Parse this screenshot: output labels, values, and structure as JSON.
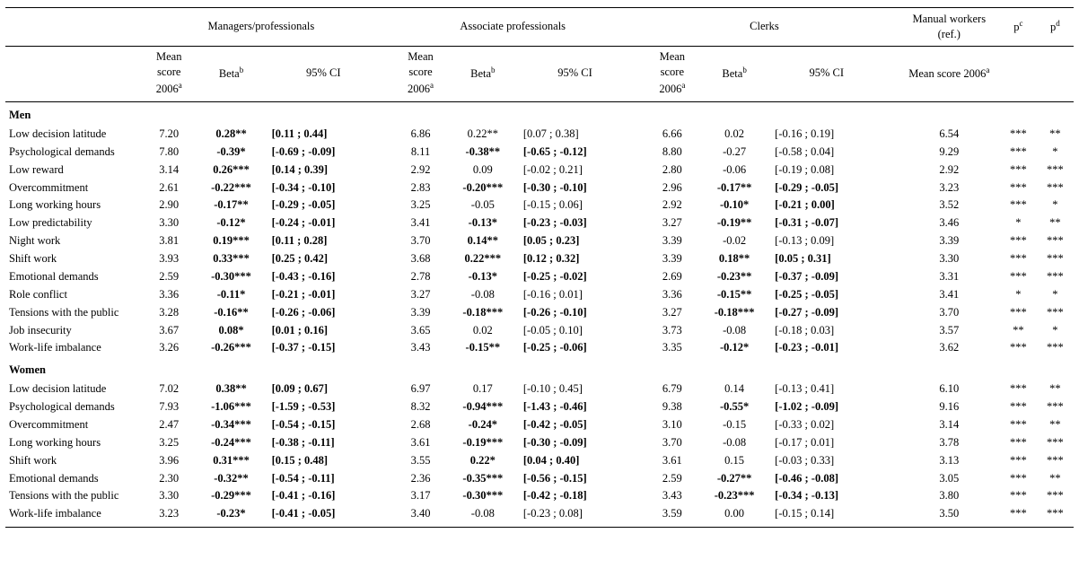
{
  "headers": {
    "groups": [
      "Managers/professionals",
      "Associate professionals",
      "Clerks"
    ],
    "manual": "Manual workers (ref.)",
    "mean": "Mean score 2006",
    "mean_sup": "a",
    "beta": "Beta",
    "beta_sup": "b",
    "ci": "95% CI",
    "manual_mean": "Mean score 2006",
    "manual_sup": "a",
    "pc": "p",
    "pc_sup": "c",
    "pd": "p",
    "pd_sup": "d"
  },
  "sections": [
    {
      "title": "Men",
      "rows": [
        {
          "label": "Low decision latitude",
          "g": [
            {
              "mean": "7.20",
              "beta": "0.28**",
              "ci": "[0.11 ; 0.44]",
              "bb": true,
              "cb": true
            },
            {
              "mean": "6.86",
              "beta": "0.22**",
              "ci": "[0.07 ; 0.38]",
              "bb": false,
              "cb": false
            },
            {
              "mean": "6.66",
              "beta": "0.02",
              "ci": "[-0.16 ; 0.19]",
              "bb": false,
              "cb": false
            }
          ],
          "manual": "6.54",
          "pc": "***",
          "pd": "**"
        },
        {
          "label": "Psychological demands",
          "g": [
            {
              "mean": "7.80",
              "beta": "-0.39*",
              "ci": "[-0.69 ; -0.09]",
              "bb": true,
              "cb": true
            },
            {
              "mean": "8.11",
              "beta": "-0.38**",
              "ci": "[-0.65 ; -0.12]",
              "bb": true,
              "cb": true
            },
            {
              "mean": "8.80",
              "beta": "-0.27",
              "ci": "[-0.58 ; 0.04]",
              "bb": false,
              "cb": false
            }
          ],
          "manual": "9.29",
          "pc": "***",
          "pd": "*"
        },
        {
          "label": "Low reward",
          "g": [
            {
              "mean": "3.14",
              "beta": "0.26***",
              "ci": "[0.14 ; 0.39]",
              "bb": true,
              "cb": true
            },
            {
              "mean": "2.92",
              "beta": "0.09",
              "ci": "[-0.02 ; 0.21]",
              "bb": false,
              "cb": false
            },
            {
              "mean": "2.80",
              "beta": "-0.06",
              "ci": "[-0.19 ; 0.08]",
              "bb": false,
              "cb": false
            }
          ],
          "manual": "2.92",
          "pc": "***",
          "pd": "***"
        },
        {
          "label": "Overcommitment",
          "g": [
            {
              "mean": "2.61",
              "beta": "-0.22***",
              "ci": "[-0.34 ; -0.10]",
              "bb": true,
              "cb": true
            },
            {
              "mean": "2.83",
              "beta": "-0.20***",
              "ci": "[-0.30 ; -0.10]",
              "bb": true,
              "cb": true
            },
            {
              "mean": "2.96",
              "beta": "-0.17**",
              "ci": "[-0.29 ; -0.05]",
              "bb": true,
              "cb": true
            }
          ],
          "manual": "3.23",
          "pc": "***",
          "pd": "***"
        },
        {
          "label": "Long working hours",
          "g": [
            {
              "mean": "2.90",
              "beta": "-0.17**",
              "ci": "[-0.29 ; -0.05]",
              "bb": true,
              "cb": true
            },
            {
              "mean": "3.25",
              "beta": "-0.05",
              "ci": "[-0.15 ; 0.06]",
              "bb": false,
              "cb": false
            },
            {
              "mean": "2.92",
              "beta": "-0.10*",
              "ci": "[-0.21 ; 0.00]",
              "bb": true,
              "cb": true
            }
          ],
          "manual": "3.52",
          "pc": "***",
          "pd": "*"
        },
        {
          "label": "Low predictability",
          "g": [
            {
              "mean": "3.30",
              "beta": "-0.12*",
              "ci": "[-0.24 ; -0.01]",
              "bb": true,
              "cb": true
            },
            {
              "mean": "3.41",
              "beta": "-0.13*",
              "ci": "[-0.23 ; -0.03]",
              "bb": true,
              "cb": true
            },
            {
              "mean": "3.27",
              "beta": "-0.19**",
              "ci": "[-0.31 ; -0.07]",
              "bb": true,
              "cb": true
            }
          ],
          "manual": "3.46",
          "pc": "*",
          "pd": "**"
        },
        {
          "label": "Night work",
          "g": [
            {
              "mean": "3.81",
              "beta": "0.19***",
              "ci": "[0.11 ; 0.28]",
              "bb": true,
              "cb": true
            },
            {
              "mean": "3.70",
              "beta": "0.14**",
              "ci": "[0.05 ; 0.23]",
              "bb": true,
              "cb": true
            },
            {
              "mean": "3.39",
              "beta": "-0.02",
              "ci": "[-0.13 ; 0.09]",
              "bb": false,
              "cb": false
            }
          ],
          "manual": "3.39",
          "pc": "***",
          "pd": "***"
        },
        {
          "label": "Shift work",
          "g": [
            {
              "mean": "3.93",
              "beta": "0.33***",
              "ci": "[0.25 ; 0.42]",
              "bb": true,
              "cb": true
            },
            {
              "mean": "3.68",
              "beta": "0.22***",
              "ci": "[0.12 ; 0.32]",
              "bb": true,
              "cb": true
            },
            {
              "mean": "3.39",
              "beta": "0.18**",
              "ci": "[0.05 ; 0.31]",
              "bb": true,
              "cb": true
            }
          ],
          "manual": "3.30",
          "pc": "***",
          "pd": "***"
        },
        {
          "label": "Emotional demands",
          "g": [
            {
              "mean": "2.59",
              "beta": "-0.30***",
              "ci": "[-0.43 ; -0.16]",
              "bb": true,
              "cb": true
            },
            {
              "mean": "2.78",
              "beta": "-0.13*",
              "ci": "[-0.25 ; -0.02]",
              "bb": true,
              "cb": true
            },
            {
              "mean": "2.69",
              "beta": "-0.23**",
              "ci": "[-0.37 ; -0.09]",
              "bb": true,
              "cb": true
            }
          ],
          "manual": "3.31",
          "pc": "***",
          "pd": "***"
        },
        {
          "label": "Role conflict",
          "g": [
            {
              "mean": "3.36",
              "beta": "-0.11*",
              "ci": "[-0.21 ; -0.01]",
              "bb": true,
              "cb": true
            },
            {
              "mean": "3.27",
              "beta": "-0.08",
              "ci": "[-0.16 ; 0.01]",
              "bb": false,
              "cb": false
            },
            {
              "mean": "3.36",
              "beta": "-0.15**",
              "ci": "[-0.25 ; -0.05]",
              "bb": true,
              "cb": true
            }
          ],
          "manual": "3.41",
          "pc": "*",
          "pd": "*"
        },
        {
          "label": "Tensions with the public",
          "g": [
            {
              "mean": "3.28",
              "beta": "-0.16**",
              "ci": "[-0.26 ; -0.06]",
              "bb": true,
              "cb": true
            },
            {
              "mean": "3.39",
              "beta": "-0.18***",
              "ci": "[-0.26 ; -0.10]",
              "bb": true,
              "cb": true
            },
            {
              "mean": "3.27",
              "beta": "-0.18***",
              "ci": "[-0.27 ; -0.09]",
              "bb": true,
              "cb": true
            }
          ],
          "manual": "3.70",
          "pc": "***",
          "pd": "***"
        },
        {
          "label": "Job insecurity",
          "g": [
            {
              "mean": "3.67",
              "beta": "0.08*",
              "ci": "[0.01 ; 0.16]",
              "bb": true,
              "cb": true
            },
            {
              "mean": "3.65",
              "beta": "0.02",
              "ci": "[-0.05 ; 0.10]",
              "bb": false,
              "cb": false
            },
            {
              "mean": "3.73",
              "beta": "-0.08",
              "ci": "[-0.18 ; 0.03]",
              "bb": false,
              "cb": false
            }
          ],
          "manual": "3.57",
          "pc": "**",
          "pd": "*"
        },
        {
          "label": "Work-life imbalance",
          "g": [
            {
              "mean": "3.26",
              "beta": "-0.26***",
              "ci": "[-0.37 ; -0.15]",
              "bb": true,
              "cb": true
            },
            {
              "mean": "3.43",
              "beta": "-0.15**",
              "ci": "[-0.25 ; -0.06]",
              "bb": true,
              "cb": true
            },
            {
              "mean": "3.35",
              "beta": "-0.12*",
              "ci": "[-0.23 ; -0.01]",
              "bb": true,
              "cb": true
            }
          ],
          "manual": "3.62",
          "pc": "***",
          "pd": "***"
        }
      ]
    },
    {
      "title": "Women",
      "rows": [
        {
          "label": "Low decision latitude",
          "g": [
            {
              "mean": "7.02",
              "beta": "0.38**",
              "ci": "[0.09 ; 0.67]",
              "bb": true,
              "cb": true
            },
            {
              "mean": "6.97",
              "beta": "0.17",
              "ci": "[-0.10 ; 0.45]",
              "bb": false,
              "cb": false
            },
            {
              "mean": "6.79",
              "beta": "0.14",
              "ci": "[-0.13 ; 0.41]",
              "bb": false,
              "cb": false
            }
          ],
          "manual": "6.10",
          "pc": "***",
          "pd": "**"
        },
        {
          "label": "Psychological demands",
          "g": [
            {
              "mean": "7.93",
              "beta": "-1.06***",
              "ci": "[-1.59 ; -0.53]",
              "bb": true,
              "cb": true
            },
            {
              "mean": "8.32",
              "beta": "-0.94***",
              "ci": "[-1.43 ; -0.46]",
              "bb": true,
              "cb": true
            },
            {
              "mean": "9.38",
              "beta": "-0.55*",
              "ci": "[-1.02 ; -0.09]",
              "bb": true,
              "cb": true
            }
          ],
          "manual": "9.16",
          "pc": "***",
          "pd": "***"
        },
        {
          "label": "Overcommitment",
          "g": [
            {
              "mean": "2.47",
              "beta": "-0.34***",
              "ci": "[-0.54 ; -0.15]",
              "bb": true,
              "cb": true
            },
            {
              "mean": "2.68",
              "beta": "-0.24*",
              "ci": "[-0.42 ; -0.05]",
              "bb": true,
              "cb": true
            },
            {
              "mean": "3.10",
              "beta": "-0.15",
              "ci": "[-0.33 ; 0.02]",
              "bb": false,
              "cb": false
            }
          ],
          "manual": "3.14",
          "pc": "***",
          "pd": "**"
        },
        {
          "label": "Long working hours",
          "g": [
            {
              "mean": "3.25",
              "beta": "-0.24***",
              "ci": "[-0.38 ; -0.11]",
              "bb": true,
              "cb": true
            },
            {
              "mean": "3.61",
              "beta": "-0.19***",
              "ci": "[-0.30 ; -0.09]",
              "bb": true,
              "cb": true
            },
            {
              "mean": "3.70",
              "beta": "-0.08",
              "ci": "[-0.17 ; 0.01]",
              "bb": false,
              "cb": false
            }
          ],
          "manual": "3.78",
          "pc": "***",
          "pd": "***"
        },
        {
          "label": "Shift work",
          "g": [
            {
              "mean": "3.96",
              "beta": "0.31***",
              "ci": "[0.15 ; 0.48]",
              "bb": true,
              "cb": true
            },
            {
              "mean": "3.55",
              "beta": "0.22*",
              "ci": "[0.04 ; 0.40]",
              "bb": true,
              "cb": true
            },
            {
              "mean": "3.61",
              "beta": "0.15",
              "ci": "[-0.03 ; 0.33]",
              "bb": false,
              "cb": false
            }
          ],
          "manual": "3.13",
          "pc": "***",
          "pd": "***"
        },
        {
          "label": "Emotional demands",
          "g": [
            {
              "mean": "2.30",
              "beta": "-0.32**",
              "ci": "[-0.54 ; -0.11]",
              "bb": true,
              "cb": true
            },
            {
              "mean": "2.36",
              "beta": "-0.35***",
              "ci": "[-0.56 ; -0.15]",
              "bb": true,
              "cb": true
            },
            {
              "mean": "2.59",
              "beta": "-0.27**",
              "ci": "[-0.46 ; -0.08]",
              "bb": true,
              "cb": true
            }
          ],
          "manual": "3.05",
          "pc": "***",
          "pd": "**"
        },
        {
          "label": "Tensions with the public",
          "g": [
            {
              "mean": "3.30",
              "beta": "-0.29***",
              "ci": "[-0.41 ; -0.16]",
              "bb": true,
              "cb": true
            },
            {
              "mean": "3.17",
              "beta": "-0.30***",
              "ci": "[-0.42 ; -0.18]",
              "bb": true,
              "cb": true
            },
            {
              "mean": "3.43",
              "beta": "-0.23***",
              "ci": "[-0.34 ; -0.13]",
              "bb": true,
              "cb": true
            }
          ],
          "manual": "3.80",
          "pc": "***",
          "pd": "***"
        },
        {
          "label": "Work-life imbalance",
          "g": [
            {
              "mean": "3.23",
              "beta": "-0.23*",
              "ci": "[-0.41 ; -0.05]",
              "bb": true,
              "cb": true
            },
            {
              "mean": "3.40",
              "beta": "-0.08",
              "ci": "[-0.23 ; 0.08]",
              "bb": false,
              "cb": false
            },
            {
              "mean": "3.59",
              "beta": "0.00",
              "ci": "[-0.15 ; 0.14]",
              "bb": false,
              "cb": false
            }
          ],
          "manual": "3.50",
          "pc": "***",
          "pd": "***"
        }
      ]
    }
  ],
  "style": {
    "font_family": "Times New Roman",
    "font_size_pt": 10,
    "text_color": "#000000",
    "background_color": "#ffffff",
    "rule_color": "#000000"
  }
}
